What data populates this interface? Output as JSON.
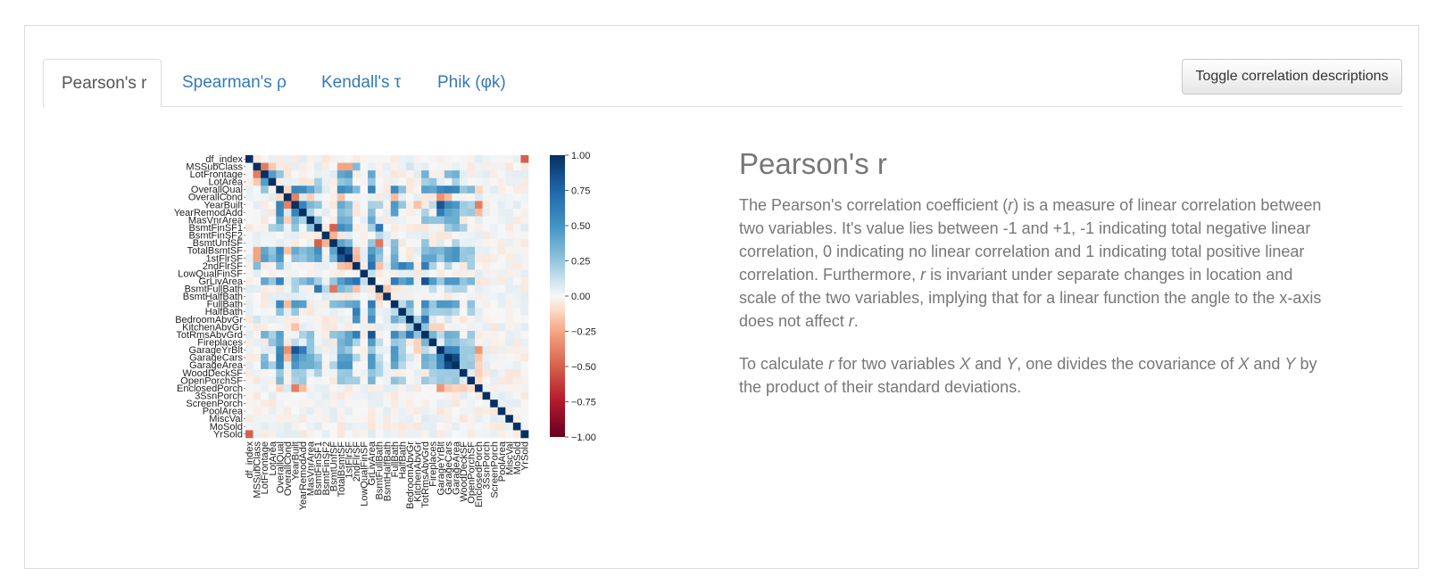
{
  "tabs": [
    {
      "label": "Pearson's r",
      "active": true
    },
    {
      "label": "Spearman's ρ",
      "active": false
    },
    {
      "label": "Kendall's τ",
      "active": false
    },
    {
      "label": "Phik (φk)",
      "active": false
    }
  ],
  "toggle_button": {
    "label": "Toggle correlation descriptions"
  },
  "description": {
    "title": "Pearson's r",
    "p1_a": "The Pearson's correlation coefficient (",
    "p1_r1": "r",
    "p1_b": ") is a measure of linear correlation between two variables. It's value lies between -1 and +1, -1 indicating total negative linear correlation, 0 indicating no linear correlation and 1 indicating total positive linear correlation. Furthermore, ",
    "p1_r2": "r",
    "p1_c": " is invariant under separate changes in location and scale of the two variables, implying that for a linear function the angle to the x-axis does not affect ",
    "p1_r3": "r",
    "p1_d": ".",
    "p2_a": "To calculate ",
    "p2_r": "r",
    "p2_b": " for two variables ",
    "p2_x1": "X",
    "p2_c": " and ",
    "p2_y1": "Y",
    "p2_d": ", one divides the covariance of ",
    "p2_x2": "X",
    "p2_e": " and ",
    "p2_y2": "Y",
    "p2_f": " by the product of their standard deviations."
  },
  "colors": {
    "negative": "#67001f",
    "neutral": "#f7f7f7",
    "positive": "#053061",
    "link": "#337ab7"
  },
  "chart_data": {
    "type": "heatmap",
    "variables": [
      "df_index",
      "MSSubClass",
      "LotFrontage",
      "LotArea",
      "OverallQual",
      "OverallCond",
      "YearBuilt",
      "YearRemodAdd",
      "MasVnrArea",
      "BsmtFinSF1",
      "BsmtFinSF2",
      "BsmtUnfSF",
      "TotalBsmtSF",
      "1stFlrSF",
      "2ndFlrSF",
      "LowQualFinSF",
      "GrLivArea",
      "BsmtFullBath",
      "BsmtHalfBath",
      "FullBath",
      "HalfBath",
      "BedroomAbvGr",
      "KitchenAbvGr",
      "TotRmsAbvGrd",
      "Fireplaces",
      "GarageYrBlt",
      "GarageCars",
      "GarageArea",
      "WoodDeckSF",
      "OpenPorchSF",
      "EnclosedPorch",
      "3SsnPorch",
      "ScreenPorch",
      "PoolArea",
      "MiscVal",
      "MoSold",
      "YrSold"
    ],
    "colorbar_ticks": [
      "1.00",
      "0.75",
      "0.50",
      "0.25",
      "0.00",
      "−0.25",
      "−0.50",
      "−0.75",
      "−1.00"
    ],
    "vmin": -1,
    "vmax": 1,
    "colormap": "RdBu",
    "correlations": [
      [
        "df_index",
        "YrSold",
        -0.5
      ],
      [
        "MSSubClass",
        "LotFrontage",
        -0.4
      ],
      [
        "MSSubClass",
        "LotArea",
        -0.15
      ],
      [
        "MSSubClass",
        "2ndFlrSF",
        0.3
      ],
      [
        "MSSubClass",
        "1stFlrSF",
        -0.25
      ],
      [
        "MSSubClass",
        "TotalBsmtSF",
        -0.25
      ],
      [
        "MSSubClass",
        "BedroomAbvGr",
        0.1
      ],
      [
        "MSSubClass",
        "YearBuilt",
        0.05
      ],
      [
        "LotFrontage",
        "LotArea",
        0.45
      ],
      [
        "LotFrontage",
        "1stFlrSF",
        0.45
      ],
      [
        "LotFrontage",
        "TotalBsmtSF",
        0.4
      ],
      [
        "LotFrontage",
        "GrLivArea",
        0.4
      ],
      [
        "LotFrontage",
        "GarageArea",
        0.35
      ],
      [
        "LotFrontage",
        "TotRmsAbvGrd",
        0.35
      ],
      [
        "LotFrontage",
        "OverallQual",
        0.25
      ],
      [
        "LotFrontage",
        "GarageCars",
        0.3
      ],
      [
        "LotArea",
        "1stFlrSF",
        0.3
      ],
      [
        "LotArea",
        "GrLivArea",
        0.25
      ],
      [
        "LotArea",
        "TotalBsmtSF",
        0.25
      ],
      [
        "LotArea",
        "BsmtFinSF1",
        0.2
      ],
      [
        "LotArea",
        "TotRmsAbvGrd",
        0.2
      ],
      [
        "LotArea",
        "Fireplaces",
        0.25
      ],
      [
        "LotArea",
        "GarageArea",
        0.2
      ],
      [
        "OverallQual",
        "OverallCond",
        -0.1
      ],
      [
        "OverallQual",
        "YearBuilt",
        0.57
      ],
      [
        "OverallQual",
        "YearRemodAdd",
        0.55
      ],
      [
        "OverallQual",
        "MasVnrArea",
        0.41
      ],
      [
        "OverallQual",
        "BsmtFinSF1",
        0.24
      ],
      [
        "OverallQual",
        "TotalBsmtSF",
        0.54
      ],
      [
        "OverallQual",
        "1stFlrSF",
        0.48
      ],
      [
        "OverallQual",
        "2ndFlrSF",
        0.3
      ],
      [
        "OverallQual",
        "GrLivArea",
        0.59
      ],
      [
        "OverallQual",
        "FullBath",
        0.55
      ],
      [
        "OverallQual",
        "HalfBath",
        0.27
      ],
      [
        "OverallQual",
        "TotRmsAbvGrd",
        0.43
      ],
      [
        "OverallQual",
        "Fireplaces",
        0.4
      ],
      [
        "OverallQual",
        "GarageYrBlt",
        0.55
      ],
      [
        "OverallQual",
        "GarageCars",
        0.6
      ],
      [
        "OverallQual",
        "GarageArea",
        0.56
      ],
      [
        "OverallQual",
        "WoodDeckSF",
        0.24
      ],
      [
        "OverallQual",
        "OpenPorchSF",
        0.31
      ],
      [
        "OverallQual",
        "EnclosedPorch",
        -0.11
      ],
      [
        "OverallCond",
        "YearBuilt",
        -0.38
      ],
      [
        "OverallCond",
        "YearRemodAdd",
        0.07
      ],
      [
        "OverallCond",
        "GarageYrBlt",
        -0.32
      ],
      [
        "OverallCond",
        "TotalBsmtSF",
        -0.17
      ],
      [
        "OverallCond",
        "GarageCars",
        -0.19
      ],
      [
        "OverallCond",
        "FullBath",
        -0.19
      ],
      [
        "OverallCond",
        "MasVnrArea",
        -0.13
      ],
      [
        "OverallCond",
        "EnclosedPorch",
        0.07
      ],
      [
        "YearBuilt",
        "YearRemodAdd",
        0.59
      ],
      [
        "YearBuilt",
        "MasVnrArea",
        0.32
      ],
      [
        "YearBuilt",
        "BsmtFinSF1",
        0.25
      ],
      [
        "YearBuilt",
        "TotalBsmtSF",
        0.39
      ],
      [
        "YearBuilt",
        "1stFlrSF",
        0.28
      ],
      [
        "YearBuilt",
        "GrLivArea",
        0.2
      ],
      [
        "YearBuilt",
        "BsmtFullBath",
        0.19
      ],
      [
        "YearBuilt",
        "FullBath",
        0.47
      ],
      [
        "YearBuilt",
        "HalfBath",
        0.24
      ],
      [
        "YearBuilt",
        "KitchenAbvGr",
        -0.17
      ],
      [
        "YearBuilt",
        "Fireplaces",
        0.15
      ],
      [
        "YearBuilt",
        "GarageYrBlt",
        0.83
      ],
      [
        "YearBuilt",
        "GarageCars",
        0.54
      ],
      [
        "YearBuilt",
        "GarageArea",
        0.48
      ],
      [
        "YearBuilt",
        "WoodDeckSF",
        0.22
      ],
      [
        "YearBuilt",
        "OpenPorchSF",
        0.19
      ],
      [
        "YearBuilt",
        "EnclosedPorch",
        -0.39
      ],
      [
        "YearRemodAdd",
        "MasVnrArea",
        0.18
      ],
      [
        "YearRemodAdd",
        "TotalBsmtSF",
        0.29
      ],
      [
        "YearRemodAdd",
        "1stFlrSF",
        0.24
      ],
      [
        "YearRemodAdd",
        "GrLivArea",
        0.29
      ],
      [
        "YearRemodAdd",
        "FullBath",
        0.44
      ],
      [
        "YearRemodAdd",
        "TotRmsAbvGrd",
        0.19
      ],
      [
        "YearRemodAdd",
        "GarageYrBlt",
        0.64
      ],
      [
        "YearRemodAdd",
        "GarageCars",
        0.42
      ],
      [
        "YearRemodAdd",
        "GarageArea",
        0.37
      ],
      [
        "YearRemodAdd",
        "WoodDeckSF",
        0.21
      ],
      [
        "YearRemodAdd",
        "OpenPorchSF",
        0.23
      ],
      [
        "YearRemodAdd",
        "EnclosedPorch",
        -0.19
      ],
      [
        "MasVnrArea",
        "BsmtFinSF1",
        0.26
      ],
      [
        "MasVnrArea",
        "TotalBsmtSF",
        0.36
      ],
      [
        "MasVnrArea",
        "1stFlrSF",
        0.34
      ],
      [
        "MasVnrArea",
        "GrLivArea",
        0.39
      ],
      [
        "MasVnrArea",
        "TotRmsAbvGrd",
        0.28
      ],
      [
        "MasVnrArea",
        "Fireplaces",
        0.25
      ],
      [
        "MasVnrArea",
        "GarageYrBlt",
        0.25
      ],
      [
        "MasVnrArea",
        "GarageCars",
        0.36
      ],
      [
        "MasVnrArea",
        "GarageArea",
        0.37
      ],
      [
        "BsmtFinSF1",
        "BsmtFinSF2",
        -0.05
      ],
      [
        "BsmtFinSF1",
        "BsmtUnfSF",
        -0.5
      ],
      [
        "BsmtFinSF1",
        "TotalBsmtSF",
        0.52
      ],
      [
        "BsmtFinSF1",
        "1stFlrSF",
        0.45
      ],
      [
        "BsmtFinSF1",
        "BsmtFullBath",
        0.65
      ],
      [
        "BsmtFinSF1",
        "GrLivArea",
        0.21
      ],
      [
        "BsmtFinSF1",
        "GarageCars",
        0.22
      ],
      [
        "BsmtFinSF1",
        "GarageArea",
        0.3
      ],
      [
        "BsmtFinSF1",
        "WoodDeckSF",
        0.2
      ],
      [
        "BsmtFinSF2",
        "BsmtUnfSF",
        -0.21
      ],
      [
        "BsmtFinSF2",
        "BsmtHalfBath",
        0.07
      ],
      [
        "BsmtFinSF2",
        "BsmtFullBath",
        0.16
      ],
      [
        "BsmtUnfSF",
        "TotalBsmtSF",
        0.42
      ],
      [
        "BsmtUnfSF",
        "1stFlrSF",
        0.32
      ],
      [
        "BsmtUnfSF",
        "BsmtFullBath",
        -0.42
      ],
      [
        "BsmtUnfSF",
        "GrLivArea",
        0.24
      ],
      [
        "BsmtUnfSF",
        "FullBath",
        0.29
      ],
      [
        "BsmtUnfSF",
        "TotRmsAbvGrd",
        0.25
      ],
      [
        "BsmtUnfSF",
        "GarageArea",
        0.18
      ],
      [
        "TotalBsmtSF",
        "1stFlrSF",
        0.82
      ],
      [
        "TotalBsmtSF",
        "2ndFlrSF",
        -0.17
      ],
      [
        "TotalBsmtSF",
        "GrLivArea",
        0.45
      ],
      [
        "TotalBsmtSF",
        "BsmtFullBath",
        0.31
      ],
      [
        "TotalBsmtSF",
        "FullBath",
        0.32
      ],
      [
        "TotalBsmtSF",
        "TotRmsAbvGrd",
        0.29
      ],
      [
        "TotalBsmtSF",
        "Fireplaces",
        0.34
      ],
      [
        "TotalBsmtSF",
        "GarageYrBlt",
        0.32
      ],
      [
        "TotalBsmtSF",
        "GarageCars",
        0.43
      ],
      [
        "TotalBsmtSF",
        "GarageArea",
        0.49
      ],
      [
        "TotalBsmtSF",
        "WoodDeckSF",
        0.23
      ],
      [
        "TotalBsmtSF",
        "OpenPorchSF",
        0.25
      ],
      [
        "1stFlrSF",
        "2ndFlrSF",
        -0.2
      ],
      [
        "1stFlrSF",
        "GrLivArea",
        0.57
      ],
      [
        "1stFlrSF",
        "BsmtFullBath",
        0.24
      ],
      [
        "1stFlrSF",
        "FullBath",
        0.38
      ],
      [
        "1stFlrSF",
        "TotRmsAbvGrd",
        0.41
      ],
      [
        "1stFlrSF",
        "Fireplaces",
        0.41
      ],
      [
        "1stFlrSF",
        "GarageYrBlt",
        0.23
      ],
      [
        "1stFlrSF",
        "GarageCars",
        0.44
      ],
      [
        "1stFlrSF",
        "GarageArea",
        0.49
      ],
      [
        "1stFlrSF",
        "WoodDeckSF",
        0.24
      ],
      [
        "1stFlrSF",
        "OpenPorchSF",
        0.21
      ],
      [
        "2ndFlrSF",
        "GrLivArea",
        0.69
      ],
      [
        "2ndFlrSF",
        "BsmtFullBath",
        -0.17
      ],
      [
        "2ndFlrSF",
        "FullBath",
        0.42
      ],
      [
        "2ndFlrSF",
        "HalfBath",
        0.61
      ],
      [
        "2ndFlrSF",
        "BedroomAbvGr",
        0.5
      ],
      [
        "2ndFlrSF",
        "TotRmsAbvGrd",
        0.62
      ],
      [
        "2ndFlrSF",
        "Fireplaces",
        0.19
      ],
      [
        "2ndFlrSF",
        "GarageCars",
        0.18
      ],
      [
        "2ndFlrSF",
        "OpenPorchSF",
        0.21
      ],
      [
        "LowQualFinSF",
        "GrLivArea",
        0.13
      ],
      [
        "GrLivArea",
        "FullBath",
        0.63
      ],
      [
        "GrLivArea",
        "HalfBath",
        0.42
      ],
      [
        "GrLivArea",
        "BedroomAbvGr",
        0.52
      ],
      [
        "GrLivArea",
        "TotRmsAbvGrd",
        0.83
      ],
      [
        "GrLivArea",
        "Fireplaces",
        0.46
      ],
      [
        "GrLivArea",
        "GarageYrBlt",
        0.23
      ],
      [
        "GrLivArea",
        "GarageCars",
        0.47
      ],
      [
        "GrLivArea",
        "GarageArea",
        0.47
      ],
      [
        "GrLivArea",
        "WoodDeckSF",
        0.25
      ],
      [
        "GrLivArea",
        "OpenPorchSF",
        0.33
      ],
      [
        "BsmtFullBath",
        "BsmtHalfBath",
        -0.15
      ],
      [
        "BsmtFullBath",
        "FullBath",
        -0.06
      ],
      [
        "BsmtFullBath",
        "Fireplaces",
        0.14
      ],
      [
        "BsmtFullBath",
        "GarageCars",
        0.13
      ],
      [
        "BsmtFullBath",
        "GarageArea",
        0.18
      ],
      [
        "BsmtFullBath",
        "WoodDeckSF",
        0.18
      ],
      [
        "FullBath",
        "HalfBath",
        0.14
      ],
      [
        "FullBath",
        "BedroomAbvGr",
        0.36
      ],
      [
        "FullBath",
        "TotRmsAbvGrd",
        0.55
      ],
      [
        "FullBath",
        "Fireplaces",
        0.24
      ],
      [
        "FullBath",
        "GarageYrBlt",
        0.48
      ],
      [
        "FullBath",
        "GarageCars",
        0.47
      ],
      [
        "FullBath",
        "GarageArea",
        0.41
      ],
      [
        "FullBath",
        "OpenPorchSF",
        0.26
      ],
      [
        "HalfBath",
        "BedroomAbvGr",
        0.23
      ],
      [
        "HalfBath",
        "TotRmsAbvGrd",
        0.34
      ],
      [
        "HalfBath",
        "Fireplaces",
        0.2
      ],
      [
        "HalfBath",
        "GarageYrBlt",
        0.2
      ],
      [
        "HalfBath",
        "GarageCars",
        0.22
      ],
      [
        "HalfBath",
        "GarageArea",
        0.16
      ],
      [
        "HalfBath",
        "OpenPorchSF",
        0.2
      ],
      [
        "BedroomAbvGr",
        "KitchenAbvGr",
        0.2
      ],
      [
        "BedroomAbvGr",
        "TotRmsAbvGrd",
        0.68
      ],
      [
        "BedroomAbvGr",
        "GarageCars",
        0.09
      ],
      [
        "KitchenAbvGr",
        "TotRmsAbvGrd",
        0.26
      ],
      [
        "KitchenAbvGr",
        "GarageYrBlt",
        -0.12
      ],
      [
        "KitchenAbvGr",
        "Fireplaces",
        -0.12
      ],
      [
        "TotRmsAbvGrd",
        "Fireplaces",
        0.33
      ],
      [
        "TotRmsAbvGrd",
        "GarageYrBlt",
        0.15
      ],
      [
        "TotRmsAbvGrd",
        "GarageCars",
        0.36
      ],
      [
        "TotRmsAbvGrd",
        "GarageArea",
        0.34
      ],
      [
        "TotRmsAbvGrd",
        "OpenPorchSF",
        0.23
      ],
      [
        "Fireplaces",
        "GarageYrBlt",
        0.05
      ],
      [
        "Fireplaces",
        "GarageCars",
        0.3
      ],
      [
        "Fireplaces",
        "GarageArea",
        0.27
      ],
      [
        "Fireplaces",
        "WoodDeckSF",
        0.2
      ],
      [
        "Fireplaces",
        "OpenPorchSF",
        0.17
      ],
      [
        "GarageYrBlt",
        "GarageCars",
        0.59
      ],
      [
        "GarageYrBlt",
        "GarageArea",
        0.56
      ],
      [
        "GarageYrBlt",
        "WoodDeckSF",
        0.22
      ],
      [
        "GarageYrBlt",
        "OpenPorchSF",
        0.23
      ],
      [
        "GarageYrBlt",
        "EnclosedPorch",
        -0.3
      ],
      [
        "GarageCars",
        "GarageArea",
        0.88
      ],
      [
        "GarageCars",
        "WoodDeckSF",
        0.23
      ],
      [
        "GarageCars",
        "OpenPorchSF",
        0.21
      ],
      [
        "GarageCars",
        "EnclosedPorch",
        -0.15
      ],
      [
        "GarageArea",
        "WoodDeckSF",
        0.22
      ],
      [
        "GarageArea",
        "OpenPorchSF",
        0.24
      ],
      [
        "GarageArea",
        "EnclosedPorch",
        -0.12
      ],
      [
        "WoodDeckSF",
        "OpenPorchSF",
        0.06
      ],
      [
        "WoodDeckSF",
        "EnclosedPorch",
        -0.13
      ],
      [
        "OpenPorchSF",
        "EnclosedPorch",
        -0.09
      ]
    ]
  }
}
